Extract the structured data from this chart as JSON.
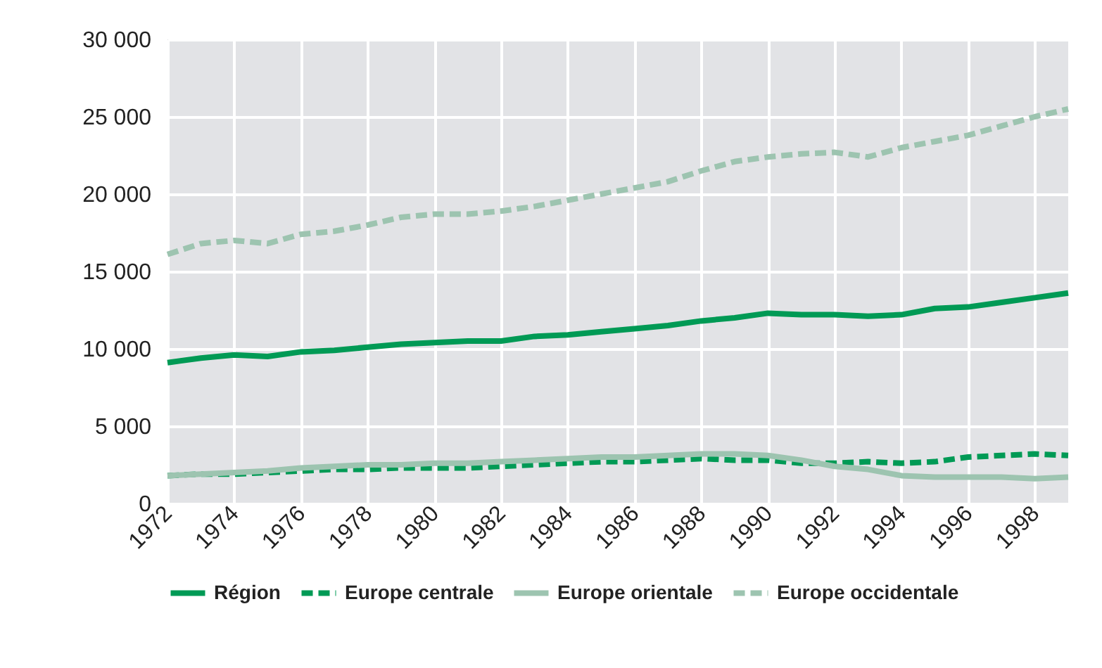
{
  "chart_data": {
    "type": "line",
    "x": [
      1972,
      1973,
      1974,
      1975,
      1976,
      1977,
      1978,
      1979,
      1980,
      1981,
      1982,
      1983,
      1984,
      1985,
      1986,
      1987,
      1988,
      1989,
      1990,
      1991,
      1992,
      1993,
      1994,
      1995,
      1996,
      1997,
      1998,
      1999
    ],
    "series": [
      {
        "name": "Région",
        "color": "#009a55",
        "line_style": "solid",
        "values": [
          9100,
          9400,
          9600,
          9500,
          9800,
          9900,
          10100,
          10300,
          10400,
          10500,
          10500,
          10800,
          10900,
          11100,
          11300,
          11500,
          11800,
          12000,
          12300,
          12200,
          12200,
          12100,
          12200,
          12600,
          12700,
          13000,
          13300,
          13600
        ]
      },
      {
        "name": "Europe centrale",
        "color": "#009a55",
        "line_style": "dashed",
        "values": [
          1800,
          1900,
          1900,
          2000,
          2100,
          2200,
          2200,
          2300,
          2300,
          2300,
          2400,
          2500,
          2600,
          2700,
          2700,
          2800,
          2900,
          2800,
          2800,
          2600,
          2600,
          2700,
          2600,
          2700,
          3000,
          3100,
          3200,
          3100
        ]
      },
      {
        "name": "Europe orientale",
        "color": "#9dc4b0",
        "line_style": "solid",
        "values": [
          1800,
          1900,
          2000,
          2100,
          2300,
          2400,
          2500,
          2500,
          2600,
          2600,
          2700,
          2800,
          2900,
          3000,
          3000,
          3100,
          3200,
          3200,
          3100,
          2800,
          2400,
          2200,
          1800,
          1700,
          1700,
          1700,
          1600,
          1700
        ]
      },
      {
        "name": "Europe occidentale",
        "color": "#9dc4b0",
        "line_style": "dashed",
        "values": [
          16100,
          16800,
          17000,
          16800,
          17400,
          17600,
          18000,
          18500,
          18700,
          18700,
          18900,
          19200,
          19600,
          20000,
          20400,
          20800,
          21500,
          22100,
          22400,
          22600,
          22700,
          22400,
          23000,
          23400,
          23800,
          24400,
          25000,
          25500
        ]
      }
    ],
    "xlim": [
      1972,
      1999
    ],
    "xticks": [
      1972,
      1974,
      1976,
      1978,
      1980,
      1982,
      1984,
      1986,
      1988,
      1990,
      1992,
      1994,
      1996,
      1998
    ],
    "ylim": [
      0,
      30000
    ],
    "yticks": [
      0,
      {
        "value": 5000,
        "label": "5 000"
      },
      {
        "value": 10000,
        "label": "10 000"
      },
      {
        "value": 15000,
        "label": "15 000"
      },
      {
        "value": 20000,
        "label": "20 000"
      },
      {
        "value": 25000,
        "label": "25 000"
      },
      {
        "value": 30000,
        "label": "30 000"
      }
    ],
    "grid": true,
    "legend": "bottom",
    "marker": "none"
  }
}
